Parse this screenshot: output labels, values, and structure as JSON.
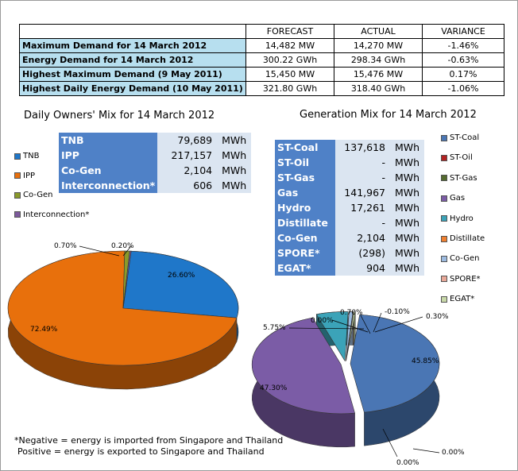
{
  "summary_table": {
    "headers": [
      "",
      "FORECAST",
      "ACTUAL",
      "VARIANCE"
    ],
    "rows": [
      {
        "label": "Maximum Demand for 14 March 2012",
        "forecast": "14,482  MW",
        "actual": "14,270  MW",
        "variance": "-1.46%"
      },
      {
        "label": "Energy Demand for 14 March 2012",
        "forecast": "300.22  GWh",
        "actual": "298.34  GWh",
        "variance": "-0.63%"
      },
      {
        "label": "Highest Maximum Demand (9 May 2011)",
        "forecast": "15,450  MW",
        "actual": "15,476  MW",
        "variance": "0.17%"
      },
      {
        "label": "Highest Daily Energy Demand (10 May 2011)",
        "forecast": "321.80  GWh",
        "actual": "318.40  GWh",
        "variance": "-1.06%"
      }
    ]
  },
  "owners_table": {
    "rows": [
      {
        "name": "TNB",
        "value": "79,689",
        "unit": "MWh"
      },
      {
        "name": "IPP",
        "value": "217,157",
        "unit": "MWh"
      },
      {
        "name": "Co-Gen",
        "value": "2,104",
        "unit": "MWh"
      },
      {
        "name": "Interconnection*",
        "value": "606",
        "unit": "MWh"
      }
    ]
  },
  "generation_table": {
    "rows": [
      {
        "name": "ST-Coal",
        "value": "137,618",
        "unit": "MWh"
      },
      {
        "name": "ST-Oil",
        "value": "-",
        "unit": "MWh"
      },
      {
        "name": "ST-Gas",
        "value": "-",
        "unit": "MWh"
      },
      {
        "name": "Gas",
        "value": "141,967",
        "unit": "MWh"
      },
      {
        "name": "Hydro",
        "value": "17,261",
        "unit": "MWh"
      },
      {
        "name": "Distillate",
        "value": "-",
        "unit": "MWh"
      },
      {
        "name": "Co-Gen",
        "value": "2,104",
        "unit": "MWh"
      },
      {
        "name": "SPORE*",
        "value": "(298)",
        "unit": "MWh"
      },
      {
        "name": "EGAT*",
        "value": "904",
        "unit": "MWh"
      }
    ]
  },
  "notes": {
    "line1": "*Negative = energy is imported from Singapore and Thailand",
    "line2": "Positive = energy is exported to Singapore and Thailand"
  },
  "chart_data": [
    {
      "type": "pie",
      "title": "Daily Owners' Mix for 14 March 2012",
      "legend_position": "left",
      "categories": [
        "TNB",
        "IPP",
        "Co-Gen",
        "Interconnection*"
      ],
      "values": [
        26.6,
        72.49,
        0.7,
        0.2
      ],
      "data_labels": [
        "26.60%",
        "72.49%",
        "0.70%",
        "0.20%"
      ],
      "colors": [
        "#1f77c9",
        "#e8700c",
        "#8a9a2a",
        "#7d5a9c"
      ]
    },
    {
      "type": "pie",
      "title": "Generation Mix for 14 March 2012",
      "legend_position": "right",
      "categories": [
        "ST-Coal",
        "ST-Oil",
        "ST-Gas",
        "Gas",
        "Hydro",
        "Distillate",
        "Co-Gen",
        "SPORE*",
        "EGAT*"
      ],
      "values": [
        45.85,
        0.0,
        0.0,
        47.3,
        5.75,
        0.0,
        0.7,
        -0.1,
        0.3
      ],
      "data_labels": [
        "45.85%",
        "0.00%",
        "0.00%",
        "47.30%",
        "5.75%",
        "0.00%",
        "0.70%",
        "-0.10%",
        "0.30%"
      ],
      "colors": [
        "#4a76b4",
        "#b22222",
        "#556b2f",
        "#7b5ca6",
        "#3ba3b8",
        "#f08030",
        "#9dbbe0",
        "#e8a898",
        "#c8d8a8"
      ]
    }
  ]
}
